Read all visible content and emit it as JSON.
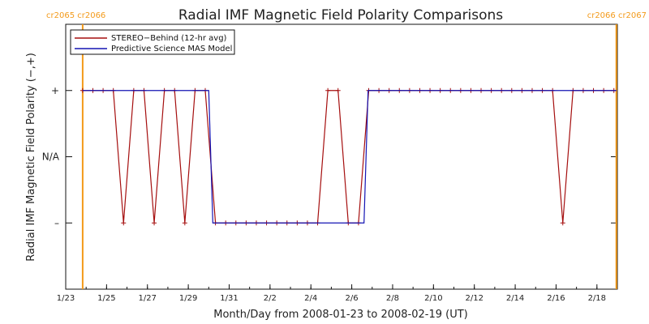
{
  "chart_data": {
    "type": "line",
    "title": "Radial IMF Magnetic Field Polarity Comparisons",
    "xlabel": "Month/Day from 2008-01-23 to 2008-02-19 (UT)",
    "ylabel": "Radial IMF Magnetic Field Polarity (−,+)",
    "x_range": [
      "2008-01-23",
      "2008-02-19"
    ],
    "xlim": [
      0,
      27
    ],
    "x_ticks": [
      {
        "x": 0,
        "label": "1/23"
      },
      {
        "x": 2,
        "label": "1/25"
      },
      {
        "x": 4,
        "label": "1/27"
      },
      {
        "x": 6,
        "label": "1/29"
      },
      {
        "x": 8,
        "label": "1/31"
      },
      {
        "x": 10,
        "label": "2/2"
      },
      {
        "x": 12,
        "label": "2/4"
      },
      {
        "x": 14,
        "label": "2/6"
      },
      {
        "x": 16,
        "label": "2/8"
      },
      {
        "x": 18,
        "label": "2/10"
      },
      {
        "x": 20,
        "label": "2/12"
      },
      {
        "x": 22,
        "label": "2/14"
      },
      {
        "x": 24,
        "label": "2/16"
      },
      {
        "x": 26,
        "label": "2/18"
      }
    ],
    "ylim": [
      -2,
      2
    ],
    "y_ticks": [
      {
        "y": 1,
        "label": "+"
      },
      {
        "y": 0,
        "label": "N/A"
      },
      {
        "y": -1,
        "label": "–"
      }
    ],
    "carrington_markers": [
      {
        "x": 0.83,
        "label": "cr2065 cr2066",
        "side": "left"
      },
      {
        "x": 26.95,
        "label": "cr2066 cr2067",
        "side": "right"
      }
    ],
    "legend": {
      "position": "top-left"
    },
    "series": [
      {
        "name": "STEREO−Behind (12-hr avg)",
        "color": "#a50f0f",
        "marker": "plus",
        "x": [
          0.83,
          1.33,
          1.83,
          2.33,
          2.83,
          3.33,
          3.83,
          4.33,
          4.83,
          5.33,
          5.83,
          6.33,
          6.83,
          7.33,
          7.83,
          8.33,
          8.83,
          9.33,
          9.83,
          10.33,
          10.83,
          11.33,
          11.83,
          12.33,
          12.83,
          13.33,
          13.83,
          14.33,
          14.83,
          15.33,
          15.83,
          16.33,
          16.83,
          17.33,
          17.83,
          18.33,
          18.83,
          19.33,
          19.83,
          20.33,
          20.83,
          21.33,
          21.83,
          22.33,
          22.83,
          23.33,
          23.83,
          24.33,
          24.83,
          25.33,
          25.83,
          26.33,
          26.83
        ],
        "values": [
          1,
          1,
          1,
          1,
          -1,
          1,
          1,
          -1,
          1,
          1,
          -1,
          1,
          1,
          -1,
          -1,
          -1,
          -1,
          -1,
          -1,
          -1,
          -1,
          -1,
          -1,
          -1,
          1,
          1,
          -1,
          -1,
          1,
          1,
          1,
          1,
          1,
          1,
          1,
          1,
          1,
          1,
          1,
          1,
          1,
          1,
          1,
          1,
          1,
          1,
          1,
          -1,
          1,
          1,
          1,
          1,
          1
        ]
      },
      {
        "name": "Predictive Science MAS Model",
        "color": "#1414b4",
        "marker": "none",
        "x": [
          0.83,
          7.0,
          7.2,
          14.6,
          14.8,
          26.95
        ],
        "values": [
          1,
          1,
          -1,
          -1,
          1,
          1
        ]
      }
    ]
  }
}
